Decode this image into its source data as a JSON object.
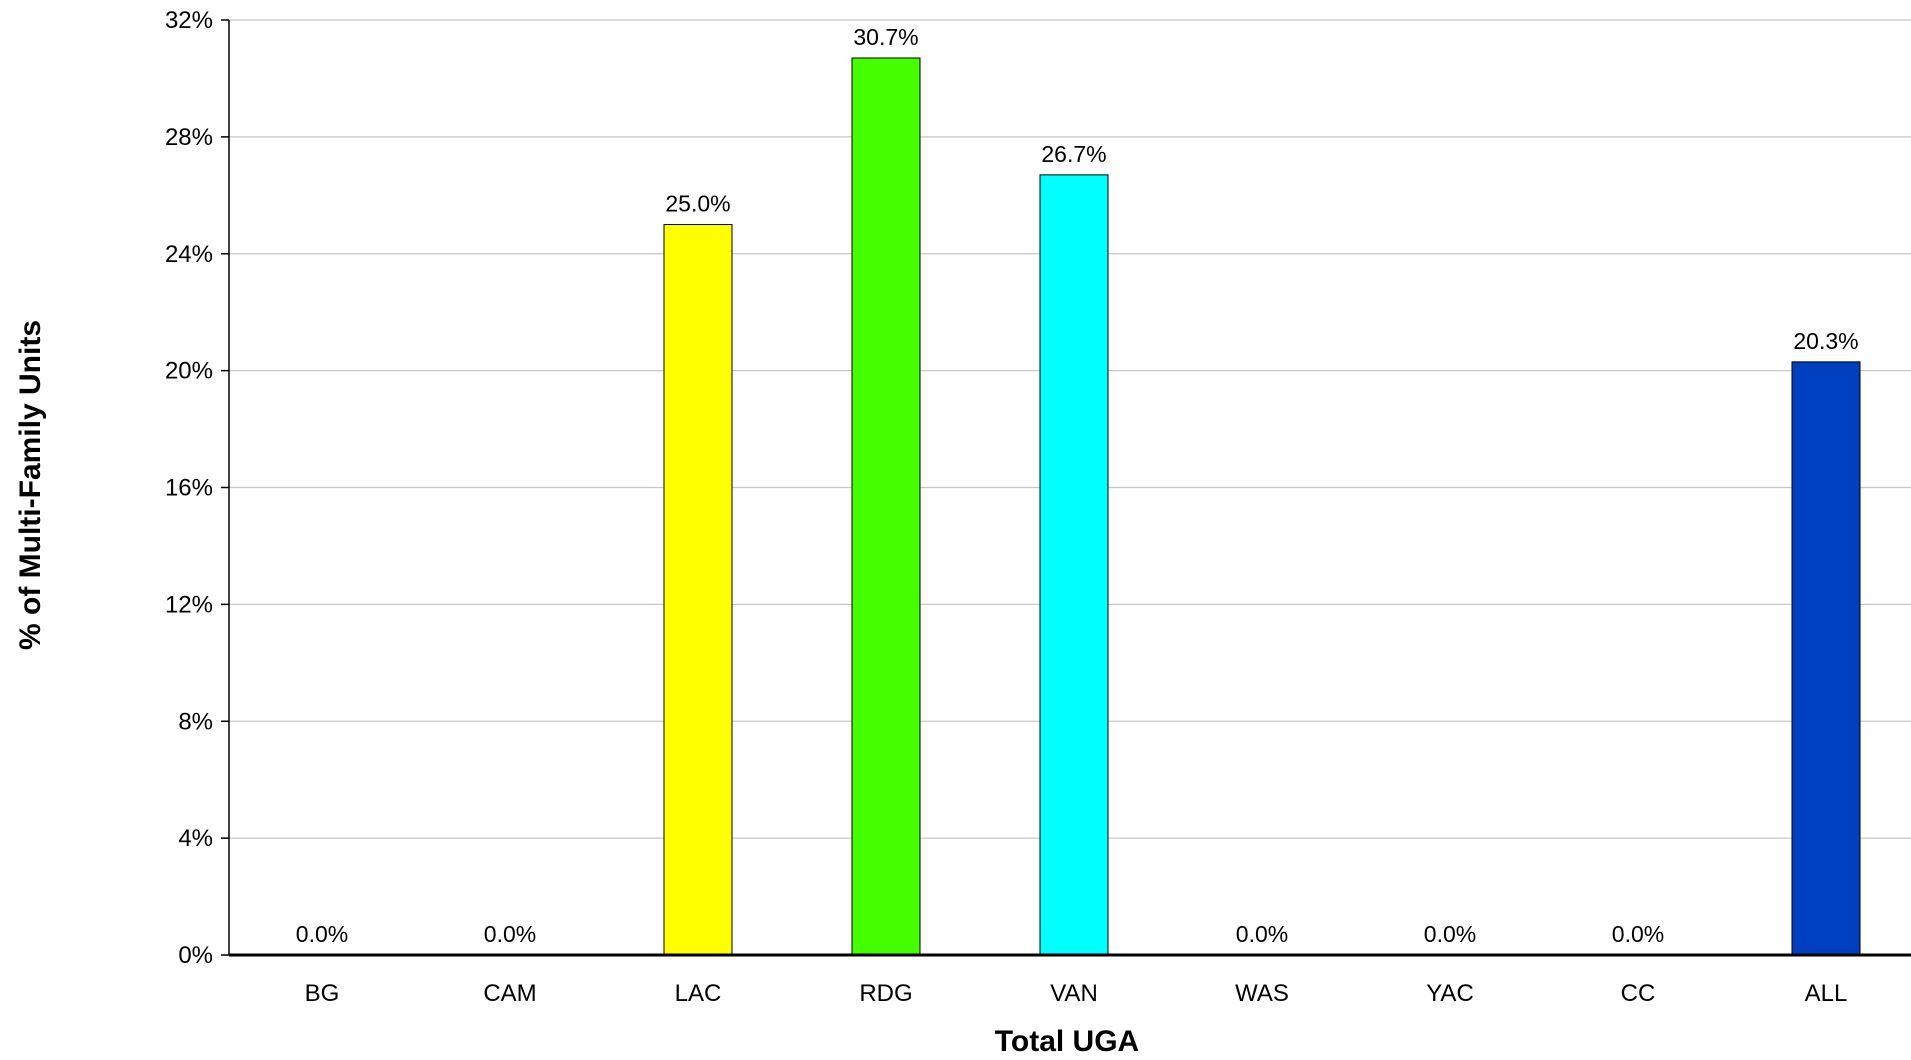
{
  "chart_data": {
    "type": "bar",
    "title": "",
    "xlabel": "Total UGA",
    "ylabel": "% of Multi-Family Units",
    "categories": [
      "BG",
      "CAM",
      "LAC",
      "RDG",
      "VAN",
      "WAS",
      "YAC",
      "CC",
      "ALL"
    ],
    "values": [
      0.0,
      0.0,
      25.0,
      30.7,
      26.7,
      0.0,
      0.0,
      0.0,
      20.3
    ],
    "data_labels": [
      "0.0%",
      "0.0%",
      "25.0%",
      "30.7%",
      "26.7%",
      "0.0%",
      "0.0%",
      "0.0%",
      "20.3%"
    ],
    "bar_colors": [
      "#ffff00",
      "#ffff00",
      "#ffff00",
      "#44ff00",
      "#00ffff",
      "#ffff00",
      "#ffff00",
      "#ffff00",
      "#0040c0"
    ],
    "ylim": [
      0,
      32
    ],
    "yticks": [
      0,
      4,
      8,
      12,
      16,
      20,
      24,
      28,
      32
    ],
    "ytick_labels": [
      "0%",
      "4%",
      "8%",
      "12%",
      "16%",
      "20%",
      "24%",
      "28%",
      "32%"
    ],
    "grid": true,
    "legend": "none"
  }
}
